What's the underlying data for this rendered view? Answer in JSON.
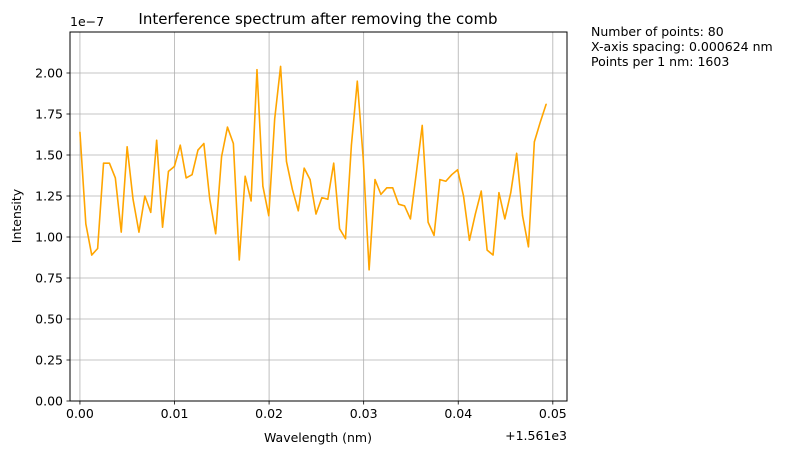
{
  "chart_data": {
    "type": "line",
    "title": "Interference spectrum after removing the comb",
    "xlabel": "Wavelength (nm)",
    "ylabel": "Intensity",
    "x_offset_label": "+1.561e3",
    "y_scale_label": "1e−7",
    "xlim": [
      1560.99895,
      1561.0515
    ],
    "ylim": [
      0.0,
      2.25e-07
    ],
    "xticks": [
      1561.0,
      1561.01,
      1561.02,
      1561.03,
      1561.04,
      1561.05
    ],
    "xtick_labels": [
      "0.00",
      "0.01",
      "0.02",
      "0.03",
      "0.04",
      "0.05"
    ],
    "yticks": [
      0,
      2.5e-08,
      5e-08,
      7.5e-08,
      1e-07,
      1.25e-07,
      1.5e-07,
      1.75e-07,
      2e-07
    ],
    "ytick_labels": [
      "0.00",
      "0.25",
      "0.50",
      "0.75",
      "1.00",
      "1.25",
      "1.50",
      "1.75",
      "2.00"
    ],
    "grid": true,
    "line_color": "#ffa500",
    "series": [
      {
        "x": [
          1561.0,
          1561.000624,
          1561.001248,
          1561.001872,
          1561.002496,
          1561.00312,
          1561.003744,
          1561.004368,
          1561.004992,
          1561.005616,
          1561.00624,
          1561.006864,
          1561.007488,
          1561.008112,
          1561.008736,
          1561.00936,
          1561.009984,
          1561.010608,
          1561.011232,
          1561.011856,
          1561.01248,
          1561.013104,
          1561.013728,
          1561.014352,
          1561.014976,
          1561.0156,
          1561.016224,
          1561.016848,
          1561.017472,
          1561.018096,
          1561.01872,
          1561.019344,
          1561.019968,
          1561.020592,
          1561.021216,
          1561.02184,
          1561.022464,
          1561.023088,
          1561.023712,
          1561.024336,
          1561.02496,
          1561.025584,
          1561.026208,
          1561.026832,
          1561.027456,
          1561.02808,
          1561.028704,
          1561.029328,
          1561.029952,
          1561.030576,
          1561.0312,
          1561.031824,
          1561.032448,
          1561.033072,
          1561.033696,
          1561.03432,
          1561.034944,
          1561.035568,
          1561.036192,
          1561.036816,
          1561.03744,
          1561.038064,
          1561.038688,
          1561.039312,
          1561.039936,
          1561.04056,
          1561.041184,
          1561.041808,
          1561.042432,
          1561.043056,
          1561.04368,
          1561.044304,
          1561.044928,
          1561.045552,
          1561.046176,
          1561.0468,
          1561.047424,
          1561.048048,
          1561.048672,
          1561.049296
        ],
        "y": [
          1.64e-07,
          1.08e-07,
          8.9e-08,
          9.3e-08,
          1.45e-07,
          1.45e-07,
          1.36e-07,
          1.03e-07,
          1.55e-07,
          1.23e-07,
          1.03e-07,
          1.25e-07,
          1.15e-07,
          1.59e-07,
          1.06e-07,
          1.4e-07,
          1.43e-07,
          1.56e-07,
          1.36e-07,
          1.38e-07,
          1.53e-07,
          1.57e-07,
          1.23e-07,
          1.02e-07,
          1.49e-07,
          1.67e-07,
          1.57e-07,
          8.6e-08,
          1.37e-07,
          1.22e-07,
          2.02e-07,
          1.31e-07,
          1.13e-07,
          1.72e-07,
          2.04e-07,
          1.46e-07,
          1.29e-07,
          1.16e-07,
          1.42e-07,
          1.35e-07,
          1.14e-07,
          1.24e-07,
          1.23e-07,
          1.45e-07,
          1.05e-07,
          9.9e-08,
          1.56e-07,
          1.95e-07,
          1.48e-07,
          8e-08,
          1.35e-07,
          1.26e-07,
          1.3e-07,
          1.3e-07,
          1.2e-07,
          1.19e-07,
          1.11e-07,
          1.39e-07,
          1.68e-07,
          1.09e-07,
          1.01e-07,
          1.35e-07,
          1.34e-07,
          1.38e-07,
          1.41e-07,
          1.25e-07,
          9.8e-08,
          1.14e-07,
          1.28e-07,
          9.2e-08,
          8.9e-08,
          1.27e-07,
          1.11e-07,
          1.27e-07,
          1.51e-07,
          1.13e-07,
          9.4e-08,
          1.58e-07,
          1.7e-07,
          1.81e-07
        ]
      }
    ]
  },
  "info": {
    "points": "Number of points: 80",
    "spacing": "X-axis spacing: 0.000624 nm",
    "per_nm": "Points per 1 nm: 1603"
  }
}
